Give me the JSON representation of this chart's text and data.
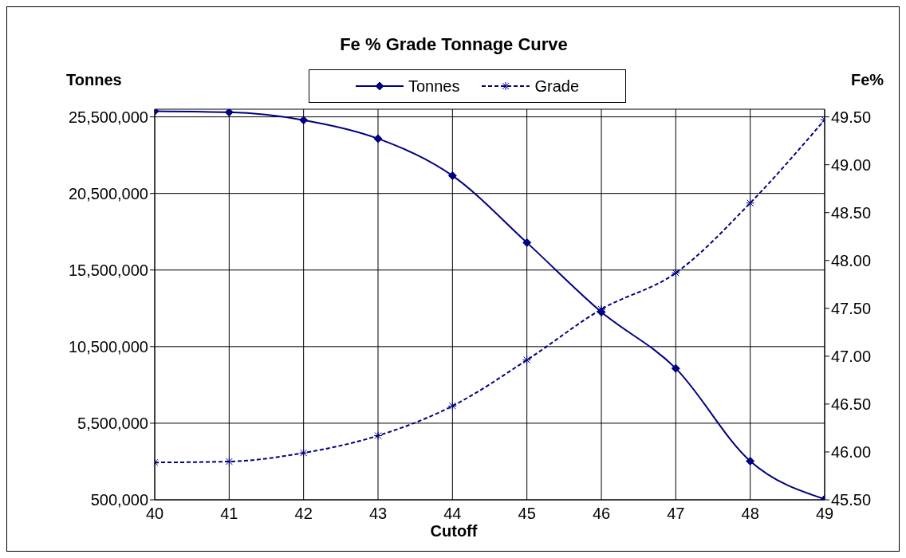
{
  "chart_data": {
    "type": "line",
    "title": "Fe % Grade Tonnage Curve",
    "xlabel": "Cutoff",
    "ylabel": "Tonnes",
    "y2label": "Fe%",
    "x": [
      40,
      41,
      42,
      43,
      44,
      45,
      46,
      47,
      48,
      49
    ],
    "series": [
      {
        "name": "Tonnes",
        "color": "#000080",
        "marker": "diamond",
        "line_style": "solid",
        "values": [
          25870000,
          25800000,
          25290000,
          24080000,
          21660000,
          17290000,
          12760000,
          9080000,
          3030000,
          550000
        ]
      },
      {
        "name": "Grade",
        "color": "#000080",
        "marker": "cross",
        "line_style": "dashed",
        "axis": "y2",
        "values": [
          45.89,
          45.9,
          45.99,
          46.17,
          46.48,
          46.96,
          47.49,
          47.87,
          48.6,
          49.47
        ]
      }
    ],
    "xlim": [
      40,
      49
    ],
    "xticks": [
      40,
      41,
      42,
      43,
      44,
      45,
      46,
      47,
      48,
      49
    ],
    "ylim": [
      500000,
      26000000
    ],
    "yticks": [
      {
        "value": 500000,
        "label": "500,000"
      },
      {
        "value": 5500000,
        "label": "5,500,000"
      },
      {
        "value": 10500000,
        "label": "10,500,000"
      },
      {
        "value": 15500000,
        "label": "15,500,000"
      },
      {
        "value": 20500000,
        "label": "20,500,000"
      },
      {
        "value": 25500000,
        "label": "25,500,000"
      }
    ],
    "y2lim": [
      45.5,
      49.58
    ],
    "y2ticks": [
      {
        "value": 45.5,
        "label": "45.50"
      },
      {
        "value": 46,
        "label": "46.00"
      },
      {
        "value": 46.5,
        "label": "46.50"
      },
      {
        "value": 47,
        "label": "47.00"
      },
      {
        "value": 47.5,
        "label": "47.50"
      },
      {
        "value": 48,
        "label": "48.00"
      },
      {
        "value": 48.5,
        "label": "48.50"
      },
      {
        "value": 49,
        "label": "49.00"
      },
      {
        "value": 49.5,
        "label": "49.50"
      }
    ],
    "grid": true,
    "legend": "top"
  }
}
